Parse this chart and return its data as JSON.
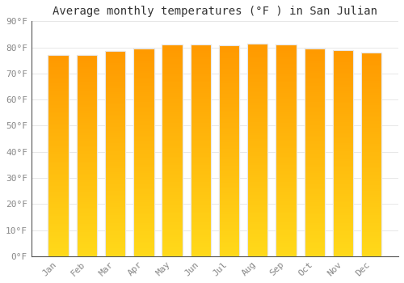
{
  "title": "Average monthly temperatures (°F ) in San Julian",
  "months": [
    "Jan",
    "Feb",
    "Mar",
    "Apr",
    "May",
    "Jun",
    "Jul",
    "Aug",
    "Sep",
    "Oct",
    "Nov",
    "Dec"
  ],
  "values": [
    77.0,
    77.2,
    78.6,
    79.7,
    81.1,
    81.1,
    80.8,
    81.5,
    81.1,
    79.7,
    79.0,
    78.1
  ],
  "ylim": [
    0,
    90
  ],
  "yticks": [
    0,
    10,
    20,
    30,
    40,
    50,
    60,
    70,
    80,
    90
  ],
  "ytick_labels": [
    "0°F",
    "10°F",
    "20°F",
    "30°F",
    "40°F",
    "50°F",
    "60°F",
    "70°F",
    "80°F",
    "90°F"
  ],
  "bar_color": "#FFA500",
  "bar_edge_color": "#E8E8E8",
  "bar_top_color": "#FF9900",
  "background_color": "#FFFFFF",
  "plot_bg_color": "#FFFFFF",
  "grid_color": "#DDDDDD",
  "title_fontsize": 10,
  "tick_fontsize": 8,
  "title_color": "#333333",
  "tick_color": "#888888",
  "spine_color": "#555555"
}
